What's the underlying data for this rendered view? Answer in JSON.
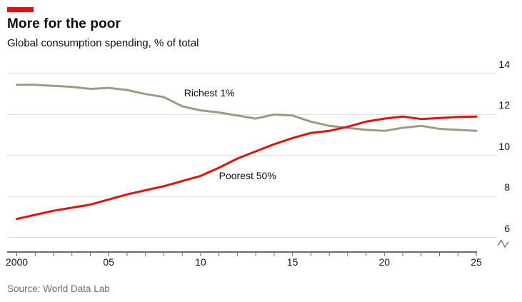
{
  "header": {
    "title": "More for the poor",
    "subtitle": "Global consumption spending, % of total",
    "tag_color": "#e3120b"
  },
  "footer": {
    "source": "Source: World Data Lab"
  },
  "chart_data": {
    "type": "line",
    "title": "More for the poor",
    "subtitle": "Global consumption spending, % of total",
    "x": [
      2000,
      2001,
      2002,
      2003,
      2004,
      2005,
      2006,
      2007,
      2008,
      2009,
      2010,
      2011,
      2012,
      2013,
      2014,
      2015,
      2016,
      2017,
      2018,
      2019,
      2020,
      2021,
      2022,
      2023,
      2024,
      2025
    ],
    "series": [
      {
        "name": "Richest 1%",
        "color": "#9e9a85",
        "values": [
          13.45,
          13.45,
          13.4,
          13.35,
          13.25,
          13.3,
          13.2,
          13.0,
          12.85,
          12.4,
          12.2,
          12.1,
          11.95,
          11.8,
          12.0,
          11.95,
          11.65,
          11.45,
          11.35,
          11.25,
          11.2,
          11.35,
          11.45,
          11.3,
          11.25,
          11.2
        ]
      },
      {
        "name": "Poorest 50%",
        "color": "#e3120b",
        "values": [
          6.9,
          7.1,
          7.3,
          7.45,
          7.6,
          7.85,
          8.1,
          8.3,
          8.5,
          8.75,
          9.0,
          9.4,
          9.85,
          10.2,
          10.55,
          10.85,
          11.1,
          11.2,
          11.4,
          11.65,
          11.8,
          11.9,
          11.78,
          11.83,
          11.88,
          11.9
        ]
      }
    ],
    "xlabel": "",
    "ylabel": "",
    "ylim": [
      6,
      14
    ],
    "yticks": [
      6,
      8,
      10,
      12,
      14
    ],
    "xticks": [
      {
        "label": "2000",
        "year": 2000
      },
      {
        "label": "05",
        "year": 2005
      },
      {
        "label": "10",
        "year": 2010
      },
      {
        "label": "15",
        "year": 2015
      },
      {
        "label": "20",
        "year": 2020
      },
      {
        "label": "25",
        "year": 2025
      }
    ],
    "grid": "horizontal",
    "legend_position": "inline-labels",
    "axis_break_symbol": true,
    "annotations": [
      {
        "text": "Richest 1%",
        "x": 2009.1,
        "y": 13.05
      },
      {
        "text": "Poorest 50%",
        "x": 2011.0,
        "y": 9.0
      }
    ],
    "colors": {
      "grid": "#dcdcdc",
      "axis": "#6b6b6b",
      "tick_text": "#121212",
      "source_text": "#6e6e6e"
    }
  }
}
